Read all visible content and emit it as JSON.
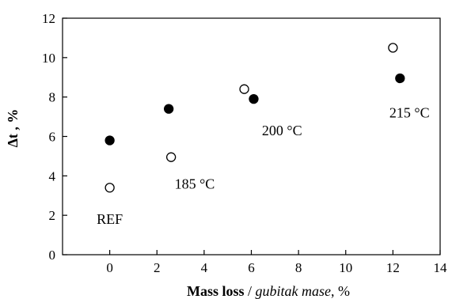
{
  "chart_data": {
    "type": "scatter",
    "ylabel": "Δt , %",
    "xlabel": {
      "bold": "Mass loss",
      "sep": " / ",
      "italic": "gubitak mase",
      "suffix": ", %"
    },
    "xlim": [
      -2,
      14
    ],
    "ylim": [
      0,
      12
    ],
    "x_ticks": [
      0,
      2,
      4,
      6,
      8,
      10,
      12,
      14
    ],
    "y_ticks": [
      0,
      2,
      4,
      6,
      8,
      10,
      12
    ],
    "grid": false,
    "series": [
      {
        "marker": "filled-circle",
        "color": "#000000",
        "points": [
          {
            "x": 0,
            "y": 5.8
          },
          {
            "x": 2.5,
            "y": 7.4
          },
          {
            "x": 6.1,
            "y": 7.9
          },
          {
            "x": 12.3,
            "y": 8.95
          }
        ]
      },
      {
        "marker": "open-circle",
        "color": "#000000",
        "points": [
          {
            "x": 0,
            "y": 3.4
          },
          {
            "x": 2.6,
            "y": 4.95
          },
          {
            "x": 5.7,
            "y": 8.4
          },
          {
            "x": 12.0,
            "y": 10.5
          }
        ]
      }
    ],
    "annotations": [
      {
        "text": "REF",
        "x": 0,
        "y": 1.8
      },
      {
        "text": "185 °C",
        "x": 3.6,
        "y": 3.6
      },
      {
        "text": "200 °C",
        "x": 7.3,
        "y": 6.3
      },
      {
        "text": "215 °C",
        "x": 12.7,
        "y": 7.2
      }
    ]
  }
}
